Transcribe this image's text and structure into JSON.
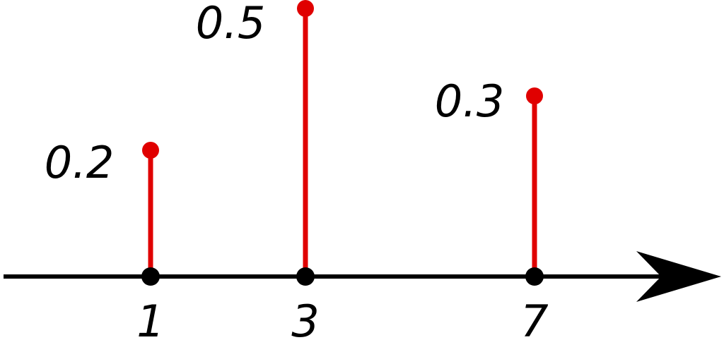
{
  "chart_data": {
    "type": "stem",
    "x": [
      1,
      3,
      7
    ],
    "values": [
      0.2,
      0.5,
      0.3
    ],
    "tick_labels": [
      "1",
      "3",
      "7"
    ],
    "data_labels": [
      "0.2",
      "0.5",
      "0.3"
    ],
    "title": "",
    "xlabel": "",
    "ylabel": "",
    "grid": false,
    "colors": {
      "stem": "#e00000",
      "axis": "#000000",
      "base_point": "#000000"
    }
  }
}
